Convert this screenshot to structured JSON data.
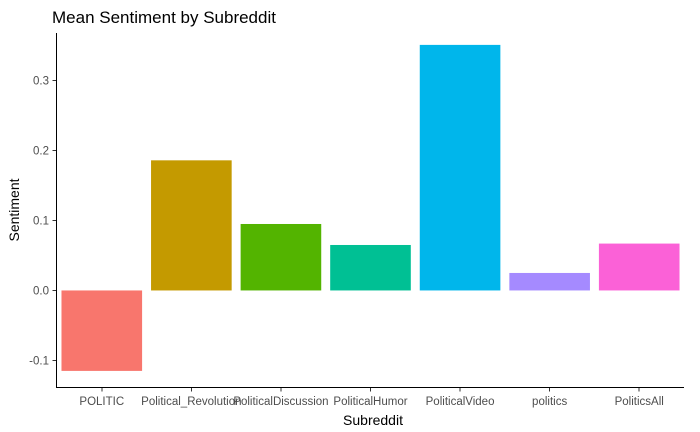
{
  "chart_data": {
    "type": "bar",
    "title": "Mean Sentiment by Subreddit",
    "xlabel": "Subreddit",
    "ylabel": "Sentiment",
    "categories": [
      "POLITIC",
      "Political_Revolution",
      "PoliticalDiscussion",
      "PoliticalHumor",
      "PoliticalVideo",
      "politics",
      "PoliticsAll"
    ],
    "values": [
      -0.115,
      0.186,
      0.095,
      0.065,
      0.351,
      0.025,
      0.067
    ],
    "colors": [
      "#F8766D",
      "#C49A00",
      "#53B400",
      "#00C094",
      "#00B6EB",
      "#A58AFF",
      "#FB61D7"
    ],
    "ylim": [
      -0.138,
      0.368
    ],
    "yticks": [
      -0.1,
      0.0,
      0.1,
      0.2,
      0.3
    ],
    "ytick_labels": [
      "-0.1",
      "0.0",
      "0.1",
      "0.2",
      "0.3"
    ],
    "grid": false,
    "legend": "none"
  }
}
